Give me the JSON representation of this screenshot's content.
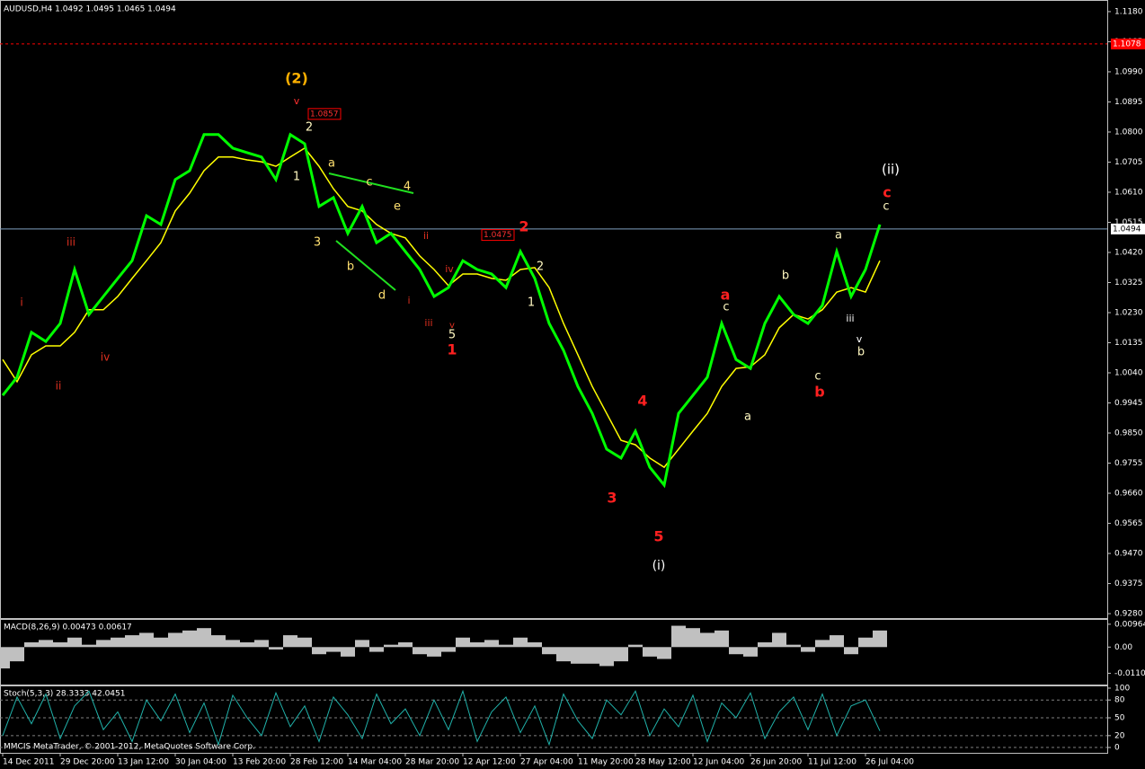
{
  "chart_data": [
    {
      "type": "line",
      "title": "AUDUSD,H4  1.0492 1.0495 1.0465 1.0494",
      "categories": [
        "14 Dec 2011",
        null,
        null,
        null,
        "29 Dec 20:00",
        null,
        null,
        null,
        "13 Jan 12:00",
        null,
        null,
        null,
        "30 Jan 04:00",
        null,
        null,
        null,
        "13 Feb 20:00",
        null,
        null,
        null,
        "28 Feb 12:00",
        null,
        null,
        null,
        "14 Mar 04:00",
        null,
        null,
        null,
        "28 Mar 20:00",
        null,
        null,
        null,
        "12 Apr 12:00",
        null,
        null,
        null,
        "27 Apr 04:00",
        null,
        null,
        null,
        "11 May 20:00",
        null,
        null,
        null,
        "28 May 12:00",
        null,
        null,
        null,
        "12 Jun 04:00",
        null,
        null,
        null,
        "26 Jun 20:00",
        null,
        null,
        null,
        "11 Jul 12:00",
        null,
        null,
        null,
        "26 Jul 04:00",
        null
      ],
      "series": [
        {
          "name": "AUDUSD",
          "color": "#00ff00",
          "values": [
            0.9969,
            1.0026,
            1.0168,
            1.0139,
            1.0196,
            1.0366,
            1.0224,
            1.0281,
            1.0338,
            1.0394,
            1.0536,
            1.0508,
            1.065,
            1.0678,
            1.0792,
            1.0792,
            1.0749,
            1.0735,
            1.0721,
            1.065,
            1.0792,
            1.0763,
            1.0565,
            1.0593,
            1.048,
            1.0565,
            1.0451,
            1.048,
            1.0423,
            1.0366,
            1.0281,
            1.0309,
            1.0394,
            1.0366,
            1.0352,
            1.0309,
            1.0423,
            1.0338,
            1.0196,
            1.0111,
            0.9997,
            0.9912,
            0.9799,
            0.9771,
            0.9856,
            0.9742,
            0.9686,
            0.9912,
            0.9969,
            1.0026,
            1.0196,
            1.0082,
            1.0054,
            1.0196,
            1.0281,
            1.0224,
            1.0196,
            1.0253,
            1.0423,
            1.0281,
            1.0366,
            1.0508
          ]
        },
        {
          "name": "MA",
          "color": "#ffff00",
          "values": [
            1.0082,
            1.0012,
            1.0097,
            1.0125,
            1.0125,
            1.0168,
            1.0239,
            1.0239,
            1.0281,
            1.0338,
            1.0394,
            1.0451,
            1.0551,
            1.0607,
            1.0678,
            1.0721,
            1.0721,
            1.0712,
            1.0706,
            1.0692,
            1.0721,
            1.0749,
            1.0692,
            1.0621,
            1.0565,
            1.0551,
            1.0508,
            1.048,
            1.0466,
            1.0409,
            1.0366,
            1.0315,
            1.0352,
            1.0352,
            1.0338,
            1.0332,
            1.0366,
            1.0372,
            1.0309,
            1.0196,
            1.0097,
            0.9997,
            0.9912,
            0.9827,
            0.9813,
            0.9771,
            0.9742,
            0.9799,
            0.9856,
            0.9912,
            0.9997,
            1.0054,
            1.0059,
            1.0097,
            1.0182,
            1.0224,
            1.021,
            1.0239,
            1.0295,
            1.0309,
            1.0295,
            1.0394
          ]
        }
      ],
      "ylim": [
        0.9266,
        1.1211
      ],
      "yticks": [
        {
          "value": 1.118,
          "label": "1.1180"
        },
        1.1085,
        {
          "value": 1.099,
          "label": "1.0990"
        },
        1.0895,
        {
          "value": 1.08,
          "label": "1.0800"
        },
        1.0705,
        {
          "value": 1.061,
          "label": "1.0610"
        },
        1.0515,
        {
          "value": 1.042,
          "label": "1.0420"
        },
        1.0325,
        {
          "value": 1.023,
          "label": "1.0230"
        },
        1.0135,
        {
          "value": 1.004,
          "label": "1.0040"
        },
        0.9945,
        {
          "value": 0.985,
          "label": "0.9850"
        },
        0.9755,
        {
          "value": 0.966,
          "label": "0.9660"
        },
        0.9565,
        {
          "value": 0.947,
          "label": "0.9470"
        },
        0.9375,
        {
          "value": 0.928,
          "label": "0.9280"
        }
      ],
      "hlines": [
        {
          "value": 1.1078,
          "label": "1.1078",
          "color": "#ff0000"
        },
        {
          "value": 1.0494,
          "label": "1.0494",
          "color": "#7f9fbf"
        }
      ],
      "price_labels": [
        {
          "value": 1.0857,
          "label": "1.0857"
        },
        {
          "value": 1.0475,
          "label": "1.0475"
        }
      ],
      "annotations": [
        {
          "text": "(2)",
          "color": "#ffb000"
        },
        {
          "text": "v",
          "color": "#ff3030"
        },
        {
          "text": "2",
          "color": "#fff8c0"
        },
        {
          "text": "1",
          "color": "#fff8c0"
        },
        {
          "text": "a",
          "color": "#ffe070"
        },
        {
          "text": "c",
          "color": "#ffe070"
        },
        {
          "text": "4",
          "color": "#ffe070"
        },
        {
          "text": "e",
          "color": "#ffe070"
        },
        {
          "text": "3",
          "color": "#ffe070"
        },
        {
          "text": "b",
          "color": "#ffe070"
        },
        {
          "text": "d",
          "color": "#ffe070"
        },
        {
          "text": "ii",
          "color": "#e03020"
        },
        {
          "text": "iv",
          "color": "#e03020"
        },
        {
          "text": "i",
          "color": "#e03020"
        },
        {
          "text": "iii",
          "color": "#e03020"
        },
        {
          "text": "ii",
          "color": "#e03020"
        },
        {
          "text": "iv",
          "color": "#e03020"
        },
        {
          "text": "i",
          "color": "#e03020"
        },
        {
          "text": "iii",
          "color": "#e03020"
        },
        {
          "text": "v",
          "color": "#e03020"
        },
        {
          "text": "5",
          "color": "#fff8c0"
        },
        {
          "text": "1",
          "color": "#ff2020"
        },
        {
          "text": "2",
          "color": "#ff2020"
        },
        {
          "text": "2",
          "color": "#fff8c0"
        },
        {
          "text": "1",
          "color": "#fff8c0"
        },
        {
          "text": "4",
          "color": "#ff2020"
        },
        {
          "text": "3",
          "color": "#ff2020"
        },
        {
          "text": "5",
          "color": "#ff2020"
        },
        {
          "text": "(i)",
          "color": "#ffffff"
        },
        {
          "text": "a",
          "color": "#ff2020"
        },
        {
          "text": "c",
          "color": "#fff8c0"
        },
        {
          "text": "b",
          "color": "#fff8c0"
        },
        {
          "text": "a",
          "color": "#fff8c0"
        },
        {
          "text": "c",
          "color": "#fff8c0"
        },
        {
          "text": "b",
          "color": "#ff2020"
        },
        {
          "text": "a",
          "color": "#fff8c0"
        },
        {
          "text": "iii",
          "color": "#ffffff"
        },
        {
          "text": "v",
          "color": "#ffffff"
        },
        {
          "text": "b",
          "color": "#fff8c0"
        },
        {
          "text": "(ii)",
          "color": "#ffffff"
        },
        {
          "text": "c",
          "color": "#ff2020"
        },
        {
          "text": "c",
          "color": "#fff8c0"
        }
      ]
    },
    {
      "type": "bar",
      "title": "MACD(8,26,9) 0.00473 0.00617",
      "color": "#c0c0c0",
      "values": [
        -0.009,
        -0.006,
        0.002,
        0.003,
        0.002,
        0.004,
        0.001,
        0.003,
        0.004,
        0.005,
        0.006,
        0.004,
        0.006,
        0.007,
        0.008,
        0.005,
        0.003,
        0.002,
        0.003,
        -0.001,
        0.005,
        0.004,
        -0.003,
        -0.002,
        -0.004,
        0.003,
        -0.002,
        0.001,
        0.002,
        -0.003,
        -0.004,
        -0.002,
        0.004,
        0.002,
        0.003,
        0.001,
        0.004,
        0.002,
        -0.003,
        -0.006,
        -0.007,
        -0.007,
        -0.008,
        -0.006,
        0.001,
        -0.004,
        -0.005,
        0.009,
        0.008,
        0.006,
        0.007,
        -0.003,
        -0.004,
        0.002,
        0.006,
        0.001,
        -0.002,
        0.003,
        0.005,
        -0.003,
        0.004,
        0.007
      ],
      "ylim": [
        -0.0158,
        0.0111
      ],
      "yticks": [
        0.00964,
        {
          "value": 0,
          "label": "0.00"
        },
        -0.01104
      ]
    },
    {
      "type": "line",
      "title": "Stoch(5,3,3) 28.3333 42.0451",
      "color": "#20b2aa",
      "values": [
        20,
        85,
        40,
        90,
        15,
        70,
        95,
        30,
        60,
        10,
        80,
        45,
        90,
        25,
        75,
        5,
        88,
        50,
        20,
        92,
        35,
        70,
        10,
        85,
        55,
        15,
        90,
        40,
        65,
        20,
        80,
        30,
        95,
        10,
        60,
        85,
        25,
        70,
        5,
        90,
        45,
        15,
        80,
        55,
        95,
        20,
        65,
        35,
        88,
        10,
        75,
        50,
        92,
        15,
        60,
        85,
        30,
        90,
        20,
        70,
        80,
        28
      ],
      "ylim": [
        -9,
        103
      ],
      "yticks": [
        100,
        80,
        50,
        20,
        0
      ],
      "footer": "MMCIS MetaTrader, © 2001-2012, MetaQuotes Software Corp."
    }
  ]
}
